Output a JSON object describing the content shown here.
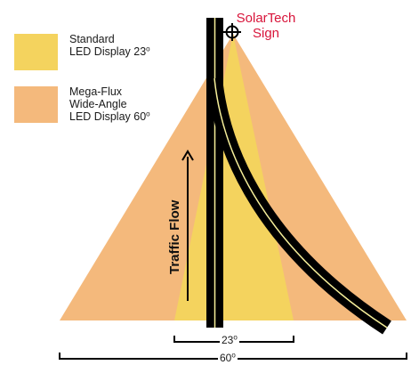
{
  "sign": {
    "name_line1": "SolarTech",
    "name_line2": "Sign"
  },
  "legend": {
    "standard": {
      "line1": "Standard",
      "line2": "LED Display 23",
      "degree_sup": "o",
      "color": "#f4d35e"
    },
    "megaflux": {
      "line1": "Mega-Flux",
      "line2": "Wide-Angle",
      "line3": "LED Display 60",
      "degree_sup": "o",
      "color": "#f4b97c"
    }
  },
  "traffic_flow_label": "Traffic Flow",
  "angles": {
    "narrow": {
      "value": "23",
      "degree_sup": "o"
    },
    "wide": {
      "value": "60",
      "degree_sup": "o"
    }
  },
  "colors": {
    "road": "#000000",
    "road_center_line": "#f6ef9a",
    "sign_text": "#d8143a",
    "wide_beam": "#f4b97c",
    "narrow_beam": "#f4d35e"
  }
}
